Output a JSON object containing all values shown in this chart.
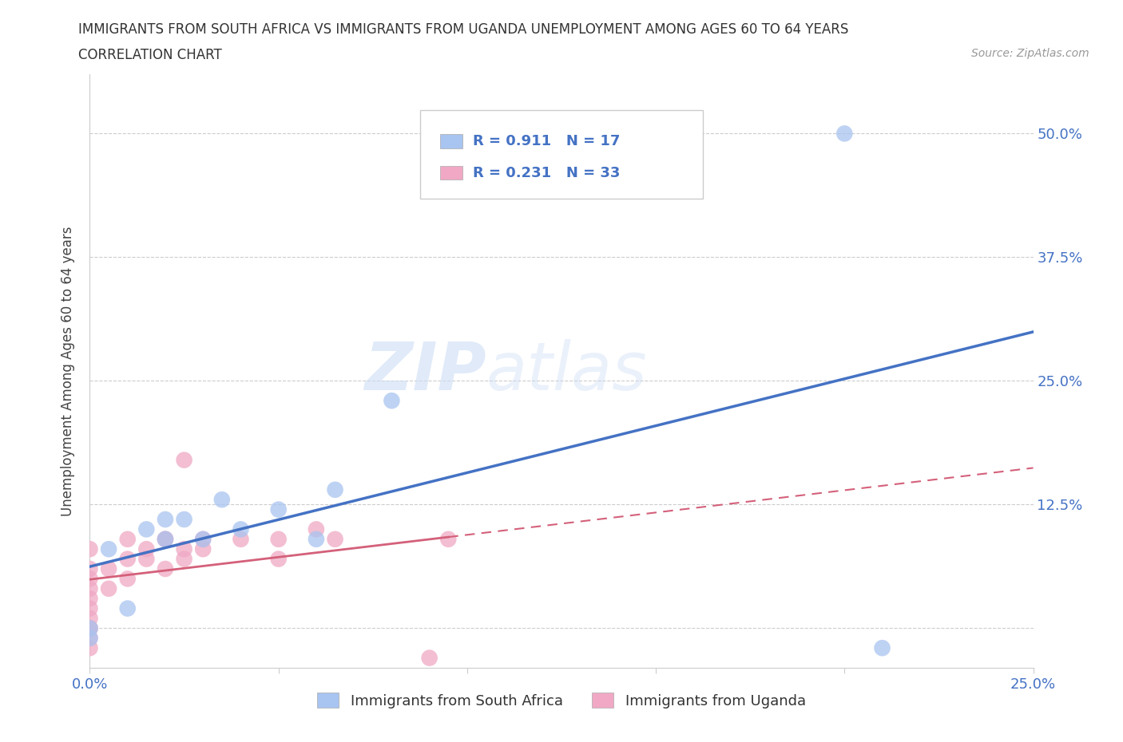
{
  "title_line1": "IMMIGRANTS FROM SOUTH AFRICA VS IMMIGRANTS FROM UGANDA UNEMPLOYMENT AMONG AGES 60 TO 64 YEARS",
  "title_line2": "CORRELATION CHART",
  "source": "Source: ZipAtlas.com",
  "ylabel": "Unemployment Among Ages 60 to 64 years",
  "xlim": [
    0.0,
    0.25
  ],
  "ylim": [
    -0.04,
    0.56
  ],
  "south_africa_x": [
    0.0,
    0.0,
    0.005,
    0.01,
    0.015,
    0.02,
    0.02,
    0.025,
    0.03,
    0.035,
    0.04,
    0.05,
    0.06,
    0.065,
    0.08,
    0.2,
    0.21
  ],
  "south_africa_y": [
    0.0,
    -0.01,
    0.08,
    0.02,
    0.1,
    0.09,
    0.11,
    0.11,
    0.09,
    0.13,
    0.1,
    0.12,
    0.09,
    0.14,
    0.23,
    0.5,
    -0.02
  ],
  "uganda_x": [
    0.0,
    0.0,
    0.0,
    0.0,
    0.0,
    0.0,
    0.0,
    0.0,
    0.0,
    0.0,
    0.0,
    0.005,
    0.005,
    0.01,
    0.01,
    0.01,
    0.015,
    0.015,
    0.02,
    0.02,
    0.02,
    0.025,
    0.025,
    0.025,
    0.03,
    0.03,
    0.04,
    0.05,
    0.05,
    0.06,
    0.065,
    0.09,
    0.095
  ],
  "uganda_y": [
    -0.02,
    -0.01,
    0.0,
    0.0,
    0.01,
    0.02,
    0.03,
    0.04,
    0.05,
    0.06,
    0.08,
    0.04,
    0.06,
    0.05,
    0.07,
    0.09,
    0.07,
    0.08,
    0.06,
    0.09,
    0.09,
    0.07,
    0.08,
    0.17,
    0.08,
    0.09,
    0.09,
    0.07,
    0.09,
    0.1,
    0.09,
    -0.03,
    0.09
  ],
  "south_africa_color": "#a8c4f0",
  "uganda_color": "#f0a8c4",
  "south_africa_line_color": "#4472c4",
  "uganda_line_color": "#d4607a",
  "R_sa": 0.911,
  "N_sa": 17,
  "R_ug": 0.231,
  "N_ug": 33,
  "legend_labels": [
    "Immigrants from South Africa",
    "Immigrants from Uganda"
  ],
  "watermark_zip": "ZIP",
  "watermark_atlas": "atlas",
  "background_color": "#ffffff",
  "grid_color": "#cccccc"
}
